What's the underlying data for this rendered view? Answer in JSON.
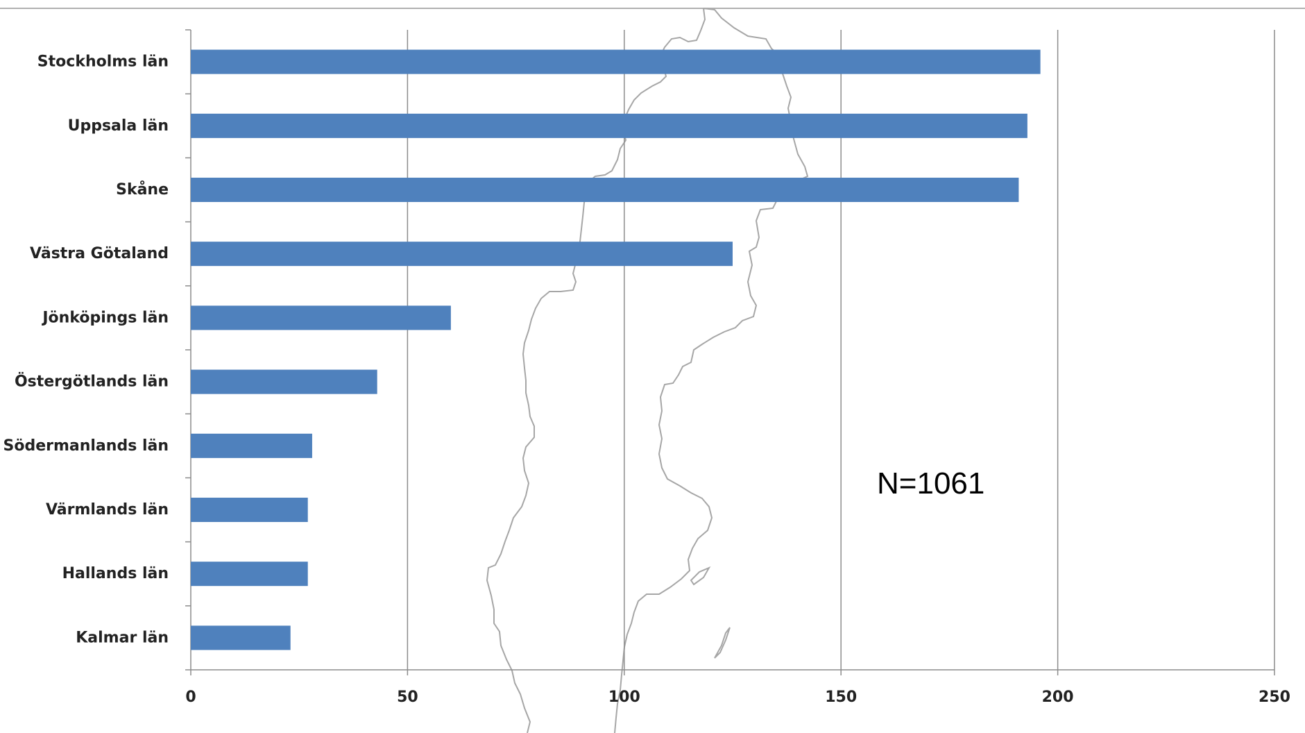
{
  "colors": {
    "bar": "#4f81bd",
    "grid": "#8c8c8c",
    "axis": "#8c8c8c",
    "map": "#a6a6a6"
  },
  "annotation": "N=1061",
  "chart_data": {
    "type": "bar",
    "orientation": "horizontal",
    "title": "",
    "xlabel": "",
    "ylabel": "",
    "categories": [
      "Stockholms län",
      "Uppsala län",
      "Skåne",
      "Västra Götaland",
      "Jönköpings län",
      "Östergötlands län",
      "Södermanlands län",
      "Värmlands län",
      "Hallands län",
      "Kalmar län"
    ],
    "values": [
      196,
      193,
      191,
      125,
      60,
      43,
      28,
      27,
      27,
      23
    ],
    "xlim": [
      0,
      250
    ],
    "xticks": [
      0,
      50,
      100,
      150,
      200,
      250
    ],
    "xtick_labels": [
      "0",
      "50",
      "100",
      "150",
      "200",
      "250"
    ],
    "grid": "vertical",
    "background_image": "sweden-map-outline"
  }
}
